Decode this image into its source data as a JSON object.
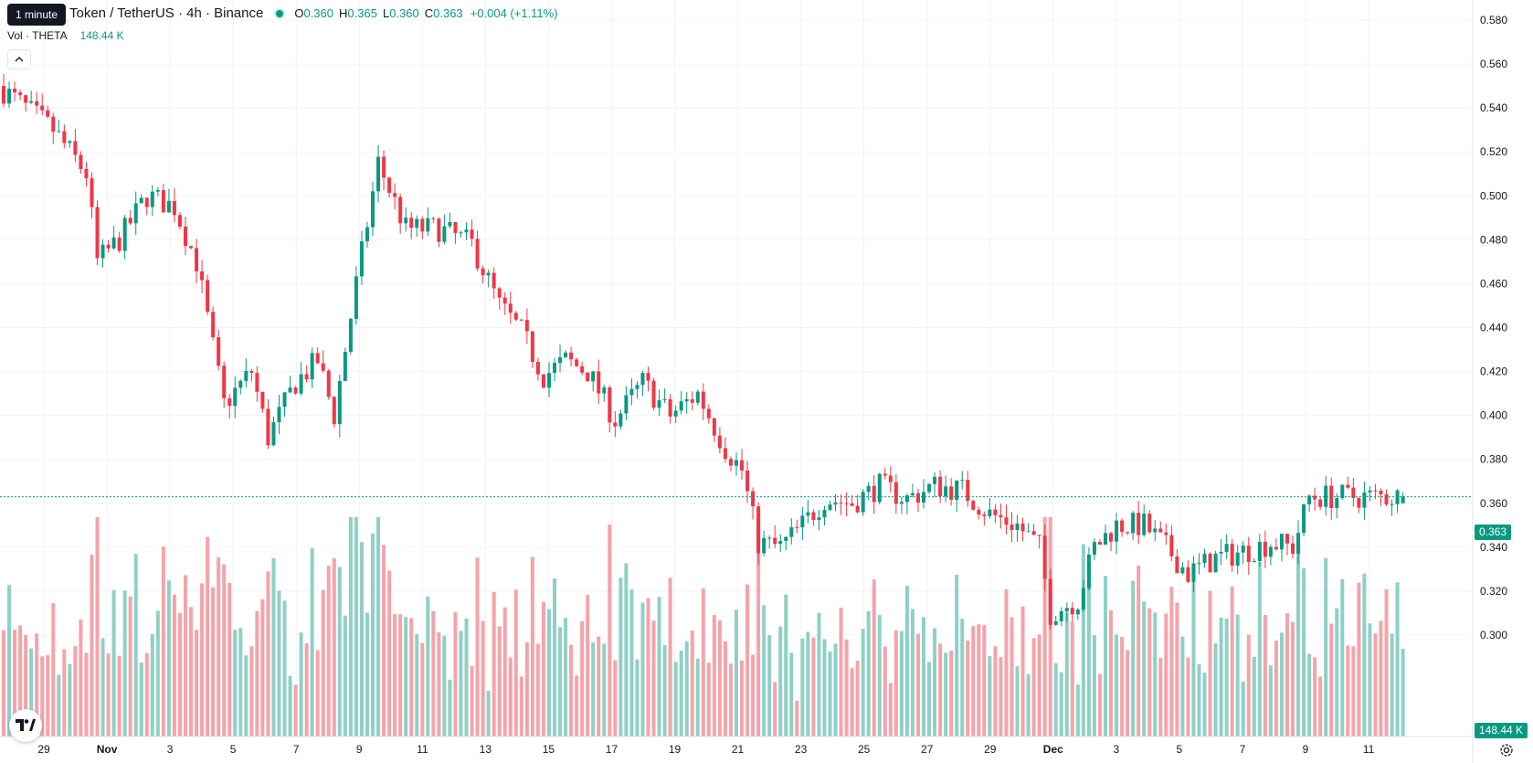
{
  "header": {
    "tooltip": "1 minute",
    "title": "Token / TetherUS · 4h · Binance",
    "ohlc": {
      "o_label": "O",
      "o": "0.360",
      "h_label": "H",
      "h": "0.365",
      "l_label": "L",
      "l": "0.360",
      "c_label": "C",
      "c": "0.363",
      "change": "+0.004 (+1.11%)"
    },
    "volume": {
      "label": "Vol · THETA",
      "value": "148.44 K"
    }
  },
  "price_axis": {
    "labels": [
      "0.580",
      "0.560",
      "0.540",
      "0.520",
      "0.500",
      "0.480",
      "0.460",
      "0.440",
      "0.420",
      "0.400",
      "0.380",
      "0.360",
      "0.340",
      "0.320",
      "0.300"
    ],
    "last_price": "0.363",
    "last_volume": "148.44 K"
  },
  "time_axis": {
    "labels": [
      {
        "text": "29",
        "bold": false
      },
      {
        "text": "Nov",
        "bold": true
      },
      {
        "text": "3",
        "bold": false
      },
      {
        "text": "5",
        "bold": false
      },
      {
        "text": "7",
        "bold": false
      },
      {
        "text": "9",
        "bold": false
      },
      {
        "text": "11",
        "bold": false
      },
      {
        "text": "13",
        "bold": false
      },
      {
        "text": "15",
        "bold": false
      },
      {
        "text": "17",
        "bold": false
      },
      {
        "text": "19",
        "bold": false
      },
      {
        "text": "21",
        "bold": false
      },
      {
        "text": "23",
        "bold": false
      },
      {
        "text": "25",
        "bold": false
      },
      {
        "text": "27",
        "bold": false
      },
      {
        "text": "29",
        "bold": false
      },
      {
        "text": "Dec",
        "bold": true
      },
      {
        "text": "3",
        "bold": false
      },
      {
        "text": "5",
        "bold": false
      },
      {
        "text": "7",
        "bold": false
      },
      {
        "text": "9",
        "bold": false
      },
      {
        "text": "11",
        "bold": false
      }
    ]
  },
  "colors": {
    "up": "#089981",
    "down": "#f23645",
    "vol_up": "#8fd0c6",
    "vol_down": "#f5a3a9",
    "grid": "#f0f3fa",
    "axis_text": "#131722"
  },
  "icons": {
    "logo": "tradingview-logo-icon",
    "settings": "gear-icon",
    "collapse": "chevron-up-icon"
  },
  "chart_data": {
    "type": "candlestick",
    "title": "Token / TetherUS · 4h · Binance",
    "interval": "4h",
    "ylim": [
      0.29,
      0.585
    ],
    "x_start": "2024-10-28",
    "candle_count": 255,
    "waypoints": [
      [
        0,
        0.55
      ],
      [
        10,
        0.53
      ],
      [
        16,
        0.51
      ],
      [
        18,
        0.47
      ],
      [
        22,
        0.48
      ],
      [
        27,
        0.5
      ],
      [
        32,
        0.495
      ],
      [
        36,
        0.47
      ],
      [
        41,
        0.405
      ],
      [
        46,
        0.42
      ],
      [
        49,
        0.39
      ],
      [
        54,
        0.415
      ],
      [
        58,
        0.425
      ],
      [
        61,
        0.4
      ],
      [
        65,
        0.46
      ],
      [
        69,
        0.515
      ],
      [
        74,
        0.485
      ],
      [
        80,
        0.485
      ],
      [
        86,
        0.478
      ],
      [
        91,
        0.45
      ],
      [
        95,
        0.438
      ],
      [
        99,
        0.418
      ],
      [
        103,
        0.425
      ],
      [
        107,
        0.42
      ],
      [
        112,
        0.398
      ],
      [
        117,
        0.415
      ],
      [
        122,
        0.4
      ],
      [
        127,
        0.41
      ],
      [
        132,
        0.385
      ],
      [
        135,
        0.375
      ],
      [
        138,
        0.342
      ],
      [
        142,
        0.34
      ],
      [
        146,
        0.35
      ],
      [
        150,
        0.362
      ],
      [
        155,
        0.36
      ],
      [
        160,
        0.368
      ],
      [
        165,
        0.362
      ],
      [
        170,
        0.368
      ],
      [
        175,
        0.366
      ],
      [
        180,
        0.355
      ],
      [
        185,
        0.35
      ],
      [
        189,
        0.34
      ],
      [
        191,
        0.31
      ],
      [
        196,
        0.316
      ],
      [
        199,
        0.34
      ],
      [
        203,
        0.35
      ],
      [
        208,
        0.35
      ],
      [
        212,
        0.34
      ],
      [
        216,
        0.328
      ],
      [
        221,
        0.335
      ],
      [
        226,
        0.338
      ],
      [
        231,
        0.342
      ],
      [
        235,
        0.34
      ],
      [
        237,
        0.355
      ],
      [
        238,
        0.363
      ]
    ],
    "last": {
      "open": 0.36,
      "high": 0.365,
      "low": 0.36,
      "close": 0.363,
      "volume": "148.44K"
    }
  }
}
